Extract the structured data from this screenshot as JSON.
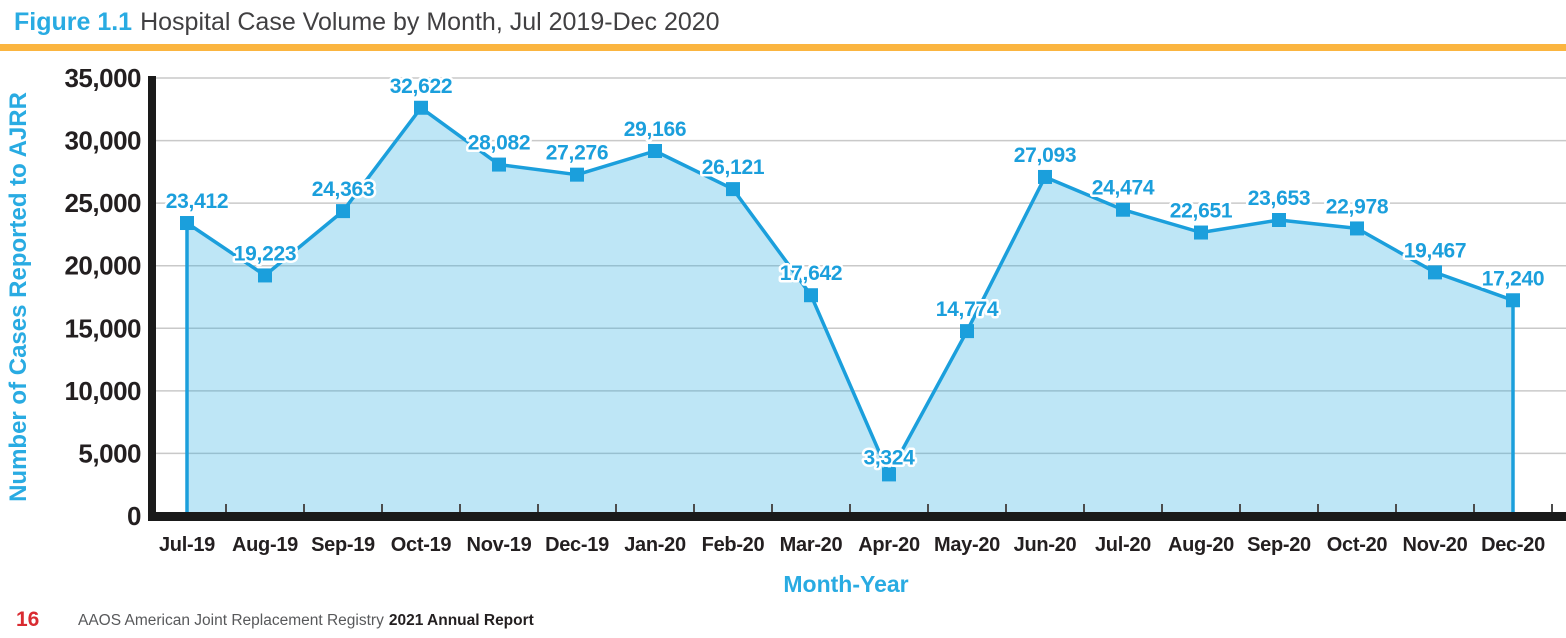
{
  "header": {
    "figure_label": "Figure 1.1",
    "figure_title": "Hospital Case Volume by Month, Jul 2019-Dec 2020"
  },
  "footer": {
    "page_number": "16",
    "registry_text": "AAOS American Joint Replacement Registry",
    "report_title": "2021 Annual Report"
  },
  "colors": {
    "accent_blue": "#29abe2",
    "line_blue": "#1b9fdc",
    "label_blue": "#1b9fdc",
    "area_fill": "rgba(41,171,226,0.30)",
    "rule_yellow": "#fbb540",
    "axis_black": "#1a1a1a",
    "gridline": "#c9c9c9",
    "tick_text": "#231f20",
    "boundary_tick": "#4d4d4d",
    "footer_red": "#d92b31",
    "footer_gray": "#58595b",
    "title_gray": "#414042",
    "halo_white": "#ffffff"
  },
  "chart_data": {
    "type": "area",
    "title": "Hospital Case Volume by Month, Jul 2019-Dec 2020",
    "xlabel": "Month-Year",
    "ylabel": "Number of Cases Reported to AJRR",
    "categories": [
      "Jul-19",
      "Aug-19",
      "Sep-19",
      "Oct-19",
      "Nov-19",
      "Dec-19",
      "Jan-20",
      "Feb-20",
      "Mar-20",
      "Apr-20",
      "May-20",
      "Jun-20",
      "Jul-20",
      "Aug-20",
      "Sep-20",
      "Oct-20",
      "Nov-20",
      "Dec-20"
    ],
    "values": [
      23412,
      19223,
      24363,
      32622,
      28082,
      27276,
      29166,
      26121,
      17642,
      3324,
      14774,
      27093,
      24474,
      22651,
      23653,
      22978,
      19467,
      17240
    ],
    "point_labels": [
      "23,412",
      "19,223",
      "24,363",
      "32,622",
      "28,082",
      "27,276",
      "29,166",
      "26,121",
      "17,642",
      "3,324",
      "14,774",
      "27,093",
      "24,474",
      "22,651",
      "23,653",
      "22,978",
      "19,467",
      "17,240"
    ],
    "y_tick_values": [
      0,
      5000,
      10000,
      15000,
      20000,
      25000,
      30000,
      35000
    ],
    "y_tick_labels": [
      "0",
      "5,000",
      "10,000",
      "15,000",
      "20,000",
      "25,000",
      "30,000",
      "35,000"
    ],
    "ylim": [
      0,
      35000
    ],
    "grid": "horizontal",
    "legend": "none",
    "marker": "square"
  }
}
